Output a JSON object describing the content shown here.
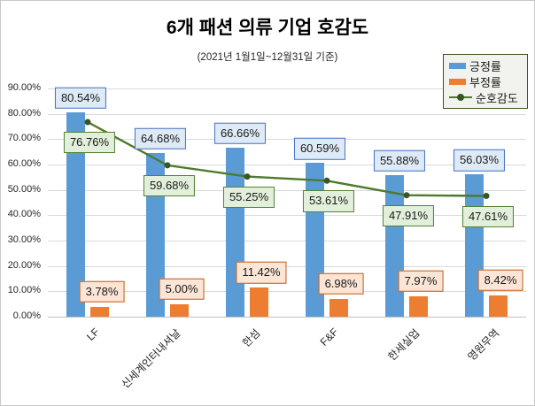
{
  "chart_data": {
    "type": "bar",
    "combo": "bar+line",
    "title": "6개 패션 의류 기업 호감도",
    "subtitle": "(2021년 1월1일~12월31일 기준)",
    "categories": [
      "LF",
      "신세계인터내셔날",
      "한섬",
      "F&F",
      "한세실업",
      "영원무역"
    ],
    "series": [
      {
        "name": "긍정률",
        "type": "bar",
        "color": "#5B9BD5",
        "label_bg": "#DEEAF6",
        "label_border": "#4472C4",
        "values": [
          80.54,
          64.68,
          66.66,
          60.59,
          55.88,
          56.03
        ],
        "labels": [
          "80.54%",
          "64.68%",
          "66.66%",
          "60.59%",
          "55.88%",
          "56.03%"
        ]
      },
      {
        "name": "부정률",
        "type": "bar",
        "color": "#ED7D31",
        "label_bg": "#FBE5D6",
        "label_border": "#C55A11",
        "values": [
          3.78,
          5.0,
          11.42,
          6.98,
          7.97,
          8.42
        ],
        "labels": [
          "3.78%",
          "5.00%",
          "11.42%",
          "6.98%",
          "7.97%",
          "8.42%"
        ]
      },
      {
        "name": "순호감도",
        "type": "line",
        "color": "#4E7A2D",
        "marker_color": "#375623",
        "label_bg": "#E2EFDA",
        "label_border": "#548235",
        "values": [
          76.76,
          59.68,
          55.25,
          53.61,
          47.91,
          47.61
        ],
        "labels": [
          "76.76%",
          "59.68%",
          "55.25%",
          "53.61%",
          "47.91%",
          "47.61%"
        ]
      }
    ],
    "ylim": [
      0,
      90
    ],
    "ytick_step": 10,
    "yticks": [
      "0.00%",
      "10.00%",
      "20.00%",
      "30.00%",
      "40.00%",
      "50.00%",
      "60.00%",
      "70.00%",
      "80.00%",
      "90.00%"
    ],
    "grid": true,
    "legend_position": "top-right",
    "axis_color": "#BFBFBF",
    "grid_color": "#D9D9D9"
  }
}
